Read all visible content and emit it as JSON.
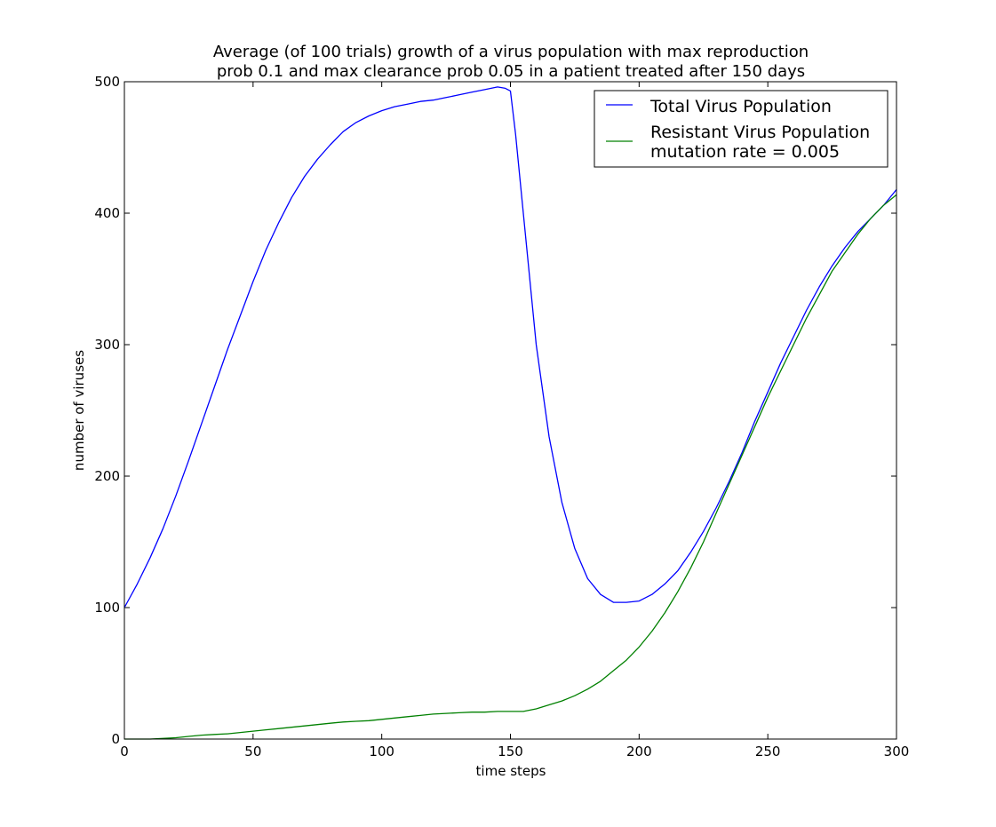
{
  "chart_data": {
    "type": "line",
    "title_lines": [
      "Average (of 100 trials) growth of a virus population with max reproduction",
      "prob 0.1 and max clearance prob 0.05 in a patient treated after 150 days"
    ],
    "xlabel": "time steps",
    "ylabel": "number of viruses",
    "xlim": [
      0,
      300
    ],
    "ylim": [
      0,
      500
    ],
    "xticks": [
      0,
      50,
      100,
      150,
      200,
      250,
      300
    ],
    "yticks": [
      0,
      100,
      200,
      300,
      400,
      500
    ],
    "grid": false,
    "legend_position": "top-right",
    "series": [
      {
        "name": "Total Virus Population",
        "color": "#0000ff",
        "x": [
          0,
          5,
          10,
          15,
          20,
          25,
          30,
          35,
          40,
          45,
          50,
          55,
          60,
          65,
          70,
          75,
          80,
          85,
          90,
          95,
          100,
          105,
          110,
          115,
          120,
          125,
          130,
          135,
          140,
          145,
          148,
          150,
          152,
          155,
          160,
          165,
          170,
          175,
          180,
          185,
          190,
          195,
          200,
          205,
          210,
          215,
          220,
          225,
          230,
          235,
          240,
          245,
          250,
          255,
          260,
          265,
          270,
          275,
          280,
          285,
          290,
          295,
          300
        ],
        "values": [
          100,
          118,
          138,
          160,
          185,
          212,
          240,
          268,
          296,
          322,
          348,
          372,
          393,
          412,
          428,
          441,
          452,
          462,
          469,
          474,
          478,
          481,
          483,
          485,
          486,
          488,
          490,
          492,
          494,
          496,
          495,
          493,
          460,
          400,
          300,
          230,
          180,
          145,
          122,
          110,
          104,
          104,
          105,
          110,
          118,
          128,
          142,
          158,
          176,
          196,
          218,
          242,
          264,
          286,
          306,
          326,
          344,
          360,
          374,
          386,
          396,
          406,
          418
        ]
      },
      {
        "name": "Resistant Virus Population\nmutation rate = 0.005",
        "color": "#008000",
        "x": [
          0,
          5,
          10,
          15,
          20,
          25,
          30,
          35,
          40,
          45,
          50,
          55,
          60,
          65,
          70,
          75,
          80,
          85,
          90,
          95,
          100,
          105,
          110,
          115,
          120,
          125,
          130,
          135,
          140,
          145,
          150,
          155,
          160,
          165,
          170,
          175,
          180,
          185,
          190,
          195,
          200,
          205,
          210,
          215,
          220,
          225,
          230,
          235,
          240,
          245,
          250,
          255,
          260,
          265,
          270,
          275,
          280,
          285,
          290,
          295,
          300
        ],
        "values": [
          0,
          0,
          0,
          0.5,
          1,
          2,
          3,
          3.5,
          4,
          5,
          6,
          7,
          8,
          9,
          10,
          11,
          12,
          13,
          13.5,
          14,
          15,
          16,
          17,
          18,
          19,
          19.5,
          20,
          20.5,
          20.5,
          21,
          21,
          21,
          23,
          26,
          29,
          33,
          38,
          44,
          52,
          60,
          70,
          82,
          96,
          112,
          130,
          150,
          172,
          194,
          216,
          238,
          260,
          280,
          300,
          320,
          338,
          356,
          370,
          384,
          396,
          406,
          414
        ]
      }
    ]
  }
}
